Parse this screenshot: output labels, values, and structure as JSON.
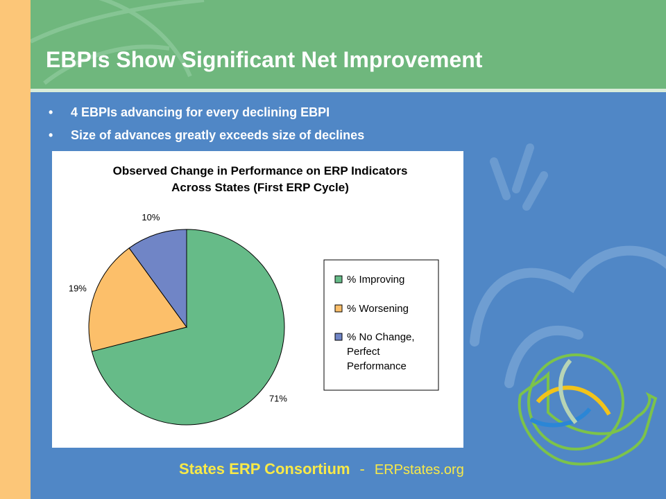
{
  "slide": {
    "title": "EBPIs Show Significant Net Improvement",
    "bullets": [
      "4 EBPIs advancing for every declining EBPI",
      "Size of advances greatly exceeds size of declines"
    ],
    "bullet_marker": "•",
    "footer": {
      "org": "States ERP Consortium",
      "separator": "-",
      "url": "ERPstates.org"
    },
    "colors": {
      "header_green": "#6fb77d",
      "body_blue": "#5087c6",
      "left_strip": "#fcc678",
      "footer_text": "#f8e948"
    },
    "decorations": [
      "leaf-icon",
      "sun-icon",
      "cloud-icon",
      "erp-us-map-logo"
    ]
  },
  "chart_data": {
    "type": "pie",
    "title": "Observed Change in Performance on ERP Indicators",
    "subtitle": "Across States (First ERP Cycle)",
    "categories": [
      "% Improving",
      "% Worsening",
      "% No Change, Perfect Performance"
    ],
    "values": [
      71,
      19,
      10
    ],
    "value_labels": [
      "71%",
      "19%",
      "10%"
    ],
    "colors": [
      "#66bb88",
      "#fcbf6a",
      "#7085c6"
    ],
    "legend": {
      "placement": "right",
      "entries": [
        {
          "lines": [
            "% Improving"
          ]
        },
        {
          "lines": [
            "% Worsening"
          ]
        },
        {
          "lines": [
            "% No Change,",
            "Perfect",
            "Performance"
          ]
        }
      ]
    }
  }
}
